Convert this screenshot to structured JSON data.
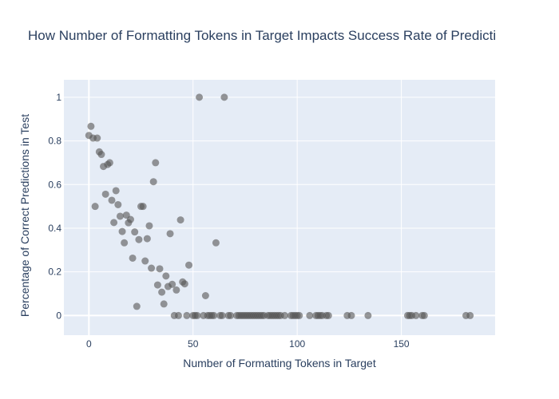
{
  "chart_data": {
    "type": "scatter",
    "title": "How Number of Formatting Tokens in Target Impacts Success Rate of Predicti",
    "xlabel": "Number of Formatting Tokens in Target",
    "ylabel": "Percentage of Correct Predictions in Test",
    "xlim": [
      -12,
      195
    ],
    "ylim": [
      -0.09,
      1.08
    ],
    "x_ticks": [
      0,
      50,
      100,
      150
    ],
    "y_ticks": [
      0,
      0.2,
      0.4,
      0.6,
      0.8,
      1
    ],
    "x_tick_labels": [
      "0",
      "50",
      "100",
      "150"
    ],
    "y_tick_labels": [
      "0",
      "0.2",
      "0.4",
      "0.6",
      "0.8",
      "1"
    ],
    "grid": true,
    "legend": "none",
    "colors": {
      "plot_bg": "#e5ecf6",
      "paper_bg": "#ffffff",
      "grid": "#ffffff",
      "marker": "#555555",
      "text": "#2a3f5f"
    },
    "points": [
      [
        0,
        0.825
      ],
      [
        1,
        0.867
      ],
      [
        2,
        0.813
      ],
      [
        3,
        0.5
      ],
      [
        4,
        0.813
      ],
      [
        5,
        0.75
      ],
      [
        6,
        0.738
      ],
      [
        7,
        0.683
      ],
      [
        9,
        0.692
      ],
      [
        10,
        0.7
      ],
      [
        8,
        0.556
      ],
      [
        11,
        0.528
      ],
      [
        12,
        0.426
      ],
      [
        13,
        0.572
      ],
      [
        14,
        0.508
      ],
      [
        15,
        0.455
      ],
      [
        16,
        0.385
      ],
      [
        17,
        0.333
      ],
      [
        18,
        0.46
      ],
      [
        19,
        0.425
      ],
      [
        20,
        0.44
      ],
      [
        21,
        0.263
      ],
      [
        22,
        0.383
      ],
      [
        23,
        0.042
      ],
      [
        24,
        0.348
      ],
      [
        25,
        0.5
      ],
      [
        26,
        0.5
      ],
      [
        27,
        0.25
      ],
      [
        28,
        0.352
      ],
      [
        29,
        0.411
      ],
      [
        30,
        0.217
      ],
      [
        31,
        0.613
      ],
      [
        32,
        0.7
      ],
      [
        33,
        0.14
      ],
      [
        34,
        0.214
      ],
      [
        35,
        0.107
      ],
      [
        36,
        0.053
      ],
      [
        37,
        0.181
      ],
      [
        38,
        0.133
      ],
      [
        39,
        0.375
      ],
      [
        40,
        0.143
      ],
      [
        41,
        0.0
      ],
      [
        42,
        0.117
      ],
      [
        43,
        0.0
      ],
      [
        44,
        0.438
      ],
      [
        45,
        0.154
      ],
      [
        46,
        0.145
      ],
      [
        47,
        0.0
      ],
      [
        48,
        0.231
      ],
      [
        50,
        0.0
      ],
      [
        51,
        0.0
      ],
      [
        52,
        0.0
      ],
      [
        53,
        1.0
      ],
      [
        55,
        0.0
      ],
      [
        56,
        0.091
      ],
      [
        57,
        0.0
      ],
      [
        58,
        0.0
      ],
      [
        59,
        0.0
      ],
      [
        60,
        0.0
      ],
      [
        61,
        0.333
      ],
      [
        63,
        0.0
      ],
      [
        64,
        0.0
      ],
      [
        65,
        1.0
      ],
      [
        67,
        0.0
      ],
      [
        68,
        0.0
      ],
      [
        71,
        0.0
      ],
      [
        72,
        0.0
      ],
      [
        73,
        0.0
      ],
      [
        74,
        0.0
      ],
      [
        75,
        0.0
      ],
      [
        76,
        0.0
      ],
      [
        77,
        0.0
      ],
      [
        78,
        0.0
      ],
      [
        79,
        0.0
      ],
      [
        80,
        0.0
      ],
      [
        81,
        0.0
      ],
      [
        82,
        0.0
      ],
      [
        83,
        0.0
      ],
      [
        84,
        0.0
      ],
      [
        86,
        0.0
      ],
      [
        87,
        0.0
      ],
      [
        88,
        0.0
      ],
      [
        89,
        0.0
      ],
      [
        90,
        0.0
      ],
      [
        91,
        0.0
      ],
      [
        92,
        0.0
      ],
      [
        94,
        0.0
      ],
      [
        97,
        0.0
      ],
      [
        98,
        0.0
      ],
      [
        99,
        0.0
      ],
      [
        100,
        0.0
      ],
      [
        101,
        0.0
      ],
      [
        106,
        0.0
      ],
      [
        109,
        0.0
      ],
      [
        110,
        0.0
      ],
      [
        111,
        0.0
      ],
      [
        112,
        0.0
      ],
      [
        114,
        0.0
      ],
      [
        115,
        0.0
      ],
      [
        124,
        0.0
      ],
      [
        126,
        0.0
      ],
      [
        134,
        0.0
      ],
      [
        153,
        0.0
      ],
      [
        154,
        0.0
      ],
      [
        155,
        0.0
      ],
      [
        157,
        0.0
      ],
      [
        160,
        0.0
      ],
      [
        161,
        0.0
      ],
      [
        181,
        0.0
      ],
      [
        183,
        0.0
      ]
    ]
  }
}
